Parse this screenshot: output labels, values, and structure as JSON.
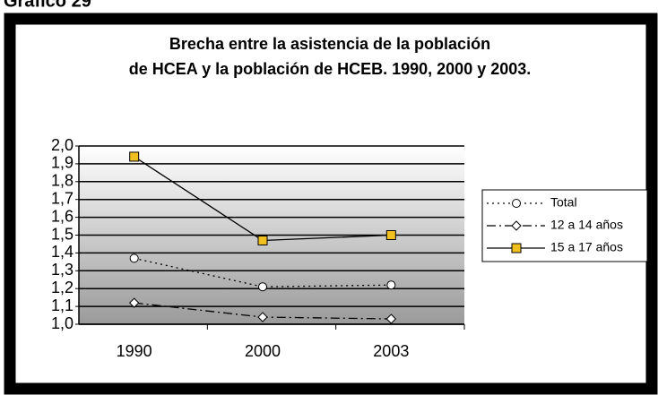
{
  "heading": "Gráfico 29",
  "chart_data": {
    "type": "line",
    "title": [
      "Brecha entre la asistencia de la población",
      "de HCEA y la población de HCEB. 1990, 2000 y 2003."
    ],
    "categories": [
      "1990",
      "2000",
      "2003"
    ],
    "series": [
      {
        "name": "Total",
        "color": "#000000",
        "marker": "circle",
        "dash": "dotted",
        "values": [
          1.37,
          1.21,
          1.22
        ]
      },
      {
        "name": "12 a 14 años",
        "color": "#000000",
        "marker": "diamond",
        "dash": "dashdot",
        "values": [
          1.12,
          1.04,
          1.03
        ]
      },
      {
        "name": "15 a 17 años",
        "color": "#000000",
        "marker": "square",
        "dash": "solid",
        "values": [
          1.94,
          1.47,
          1.5
        ]
      }
    ],
    "ylim": [
      1.0,
      2.0
    ],
    "yticks": [
      {
        "value": 1.0,
        "label": "1,0"
      },
      {
        "value": 1.1,
        "label": "1,1"
      },
      {
        "value": 1.2,
        "label": "1,2"
      },
      {
        "value": 1.3,
        "label": "1,3"
      },
      {
        "value": 1.4,
        "label": "1,4"
      },
      {
        "value": 1.5,
        "label": "1,5"
      },
      {
        "value": 1.6,
        "label": "1,6"
      },
      {
        "value": 1.7,
        "label": "1,7"
      },
      {
        "value": 1.8,
        "label": "1,8"
      },
      {
        "value": 1.9,
        "label": "1,9"
      },
      {
        "value": 2.0,
        "label": "2,0"
      }
    ],
    "grid": true,
    "legend": "right"
  }
}
